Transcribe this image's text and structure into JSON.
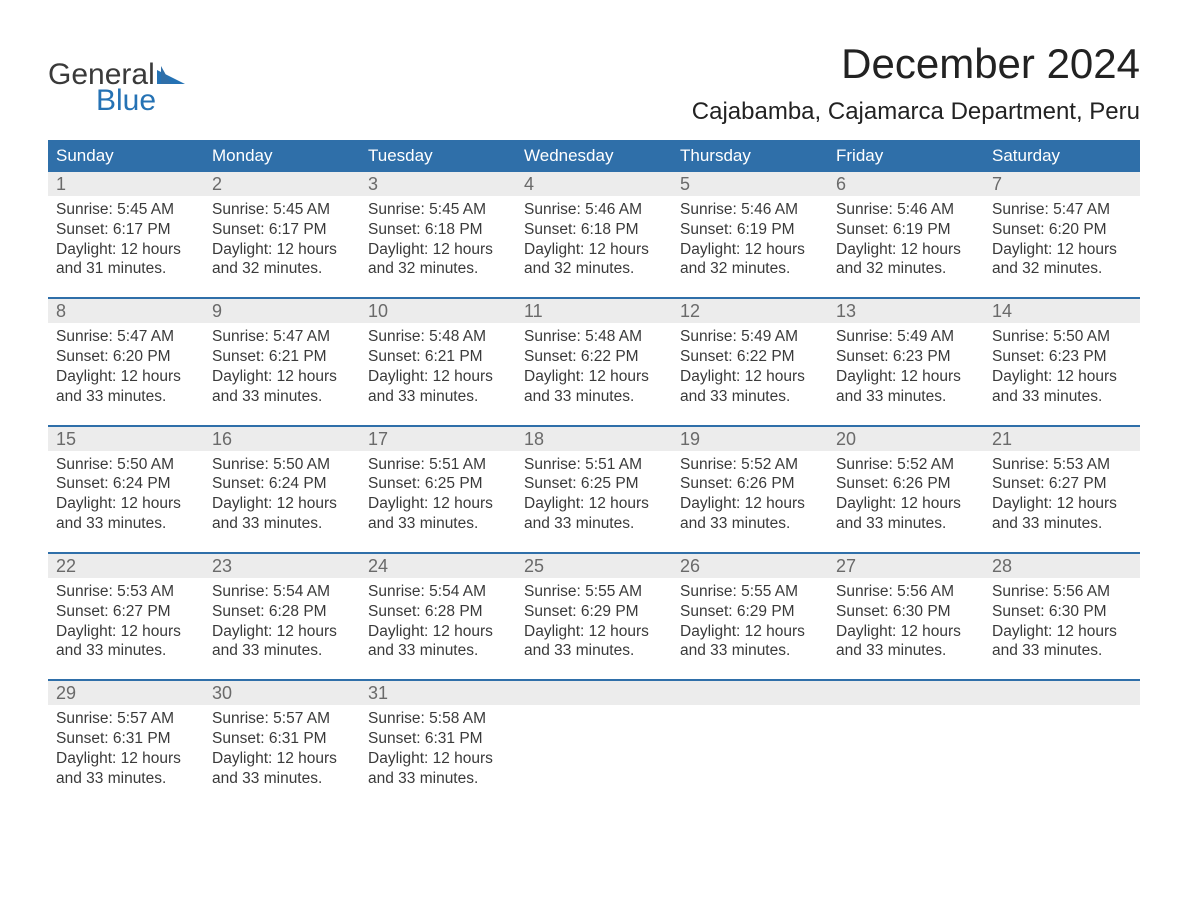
{
  "logo": {
    "word1": "General",
    "word2": "Blue",
    "color1": "#3a3a3a",
    "color2": "#2572b4"
  },
  "title": "December 2024",
  "location": "Cajabamba, Cajamarca Department, Peru",
  "colors": {
    "header_bg": "#2f6fa9",
    "header_text": "#ffffff",
    "daynum_bg": "#ececec",
    "daynum_text": "#6a6a6a",
    "body_text": "#3a3a3a",
    "rule": "#2f6fa9",
    "page_bg": "#ffffff"
  },
  "typography": {
    "title_size_pt": 42,
    "location_size_pt": 24,
    "dayheader_size_pt": 17,
    "daynum_size_pt": 18,
    "body_size_pt": 15.5,
    "font_family": "Arial"
  },
  "day_labels": [
    "Sunday",
    "Monday",
    "Tuesday",
    "Wednesday",
    "Thursday",
    "Friday",
    "Saturday"
  ],
  "weeks": [
    [
      {
        "n": "1",
        "sunrise": "5:45 AM",
        "sunset": "6:17 PM",
        "dl1": "Daylight: 12 hours",
        "dl2": "and 31 minutes."
      },
      {
        "n": "2",
        "sunrise": "5:45 AM",
        "sunset": "6:17 PM",
        "dl1": "Daylight: 12 hours",
        "dl2": "and 32 minutes."
      },
      {
        "n": "3",
        "sunrise": "5:45 AM",
        "sunset": "6:18 PM",
        "dl1": "Daylight: 12 hours",
        "dl2": "and 32 minutes."
      },
      {
        "n": "4",
        "sunrise": "5:46 AM",
        "sunset": "6:18 PM",
        "dl1": "Daylight: 12 hours",
        "dl2": "and 32 minutes."
      },
      {
        "n": "5",
        "sunrise": "5:46 AM",
        "sunset": "6:19 PM",
        "dl1": "Daylight: 12 hours",
        "dl2": "and 32 minutes."
      },
      {
        "n": "6",
        "sunrise": "5:46 AM",
        "sunset": "6:19 PM",
        "dl1": "Daylight: 12 hours",
        "dl2": "and 32 minutes."
      },
      {
        "n": "7",
        "sunrise": "5:47 AM",
        "sunset": "6:20 PM",
        "dl1": "Daylight: 12 hours",
        "dl2": "and 32 minutes."
      }
    ],
    [
      {
        "n": "8",
        "sunrise": "5:47 AM",
        "sunset": "6:20 PM",
        "dl1": "Daylight: 12 hours",
        "dl2": "and 33 minutes."
      },
      {
        "n": "9",
        "sunrise": "5:47 AM",
        "sunset": "6:21 PM",
        "dl1": "Daylight: 12 hours",
        "dl2": "and 33 minutes."
      },
      {
        "n": "10",
        "sunrise": "5:48 AM",
        "sunset": "6:21 PM",
        "dl1": "Daylight: 12 hours",
        "dl2": "and 33 minutes."
      },
      {
        "n": "11",
        "sunrise": "5:48 AM",
        "sunset": "6:22 PM",
        "dl1": "Daylight: 12 hours",
        "dl2": "and 33 minutes."
      },
      {
        "n": "12",
        "sunrise": "5:49 AM",
        "sunset": "6:22 PM",
        "dl1": "Daylight: 12 hours",
        "dl2": "and 33 minutes."
      },
      {
        "n": "13",
        "sunrise": "5:49 AM",
        "sunset": "6:23 PM",
        "dl1": "Daylight: 12 hours",
        "dl2": "and 33 minutes."
      },
      {
        "n": "14",
        "sunrise": "5:50 AM",
        "sunset": "6:23 PM",
        "dl1": "Daylight: 12 hours",
        "dl2": "and 33 minutes."
      }
    ],
    [
      {
        "n": "15",
        "sunrise": "5:50 AM",
        "sunset": "6:24 PM",
        "dl1": "Daylight: 12 hours",
        "dl2": "and 33 minutes."
      },
      {
        "n": "16",
        "sunrise": "5:50 AM",
        "sunset": "6:24 PM",
        "dl1": "Daylight: 12 hours",
        "dl2": "and 33 minutes."
      },
      {
        "n": "17",
        "sunrise": "5:51 AM",
        "sunset": "6:25 PM",
        "dl1": "Daylight: 12 hours",
        "dl2": "and 33 minutes."
      },
      {
        "n": "18",
        "sunrise": "5:51 AM",
        "sunset": "6:25 PM",
        "dl1": "Daylight: 12 hours",
        "dl2": "and 33 minutes."
      },
      {
        "n": "19",
        "sunrise": "5:52 AM",
        "sunset": "6:26 PM",
        "dl1": "Daylight: 12 hours",
        "dl2": "and 33 minutes."
      },
      {
        "n": "20",
        "sunrise": "5:52 AM",
        "sunset": "6:26 PM",
        "dl1": "Daylight: 12 hours",
        "dl2": "and 33 minutes."
      },
      {
        "n": "21",
        "sunrise": "5:53 AM",
        "sunset": "6:27 PM",
        "dl1": "Daylight: 12 hours",
        "dl2": "and 33 minutes."
      }
    ],
    [
      {
        "n": "22",
        "sunrise": "5:53 AM",
        "sunset": "6:27 PM",
        "dl1": "Daylight: 12 hours",
        "dl2": "and 33 minutes."
      },
      {
        "n": "23",
        "sunrise": "5:54 AM",
        "sunset": "6:28 PM",
        "dl1": "Daylight: 12 hours",
        "dl2": "and 33 minutes."
      },
      {
        "n": "24",
        "sunrise": "5:54 AM",
        "sunset": "6:28 PM",
        "dl1": "Daylight: 12 hours",
        "dl2": "and 33 minutes."
      },
      {
        "n": "25",
        "sunrise": "5:55 AM",
        "sunset": "6:29 PM",
        "dl1": "Daylight: 12 hours",
        "dl2": "and 33 minutes."
      },
      {
        "n": "26",
        "sunrise": "5:55 AM",
        "sunset": "6:29 PM",
        "dl1": "Daylight: 12 hours",
        "dl2": "and 33 minutes."
      },
      {
        "n": "27",
        "sunrise": "5:56 AM",
        "sunset": "6:30 PM",
        "dl1": "Daylight: 12 hours",
        "dl2": "and 33 minutes."
      },
      {
        "n": "28",
        "sunrise": "5:56 AM",
        "sunset": "6:30 PM",
        "dl1": "Daylight: 12 hours",
        "dl2": "and 33 minutes."
      }
    ],
    [
      {
        "n": "29",
        "sunrise": "5:57 AM",
        "sunset": "6:31 PM",
        "dl1": "Daylight: 12 hours",
        "dl2": "and 33 minutes."
      },
      {
        "n": "30",
        "sunrise": "5:57 AM",
        "sunset": "6:31 PM",
        "dl1": "Daylight: 12 hours",
        "dl2": "and 33 minutes."
      },
      {
        "n": "31",
        "sunrise": "5:58 AM",
        "sunset": "6:31 PM",
        "dl1": "Daylight: 12 hours",
        "dl2": "and 33 minutes."
      },
      null,
      null,
      null,
      null
    ]
  ],
  "labels": {
    "sunrise_prefix": "Sunrise: ",
    "sunset_prefix": "Sunset: "
  }
}
